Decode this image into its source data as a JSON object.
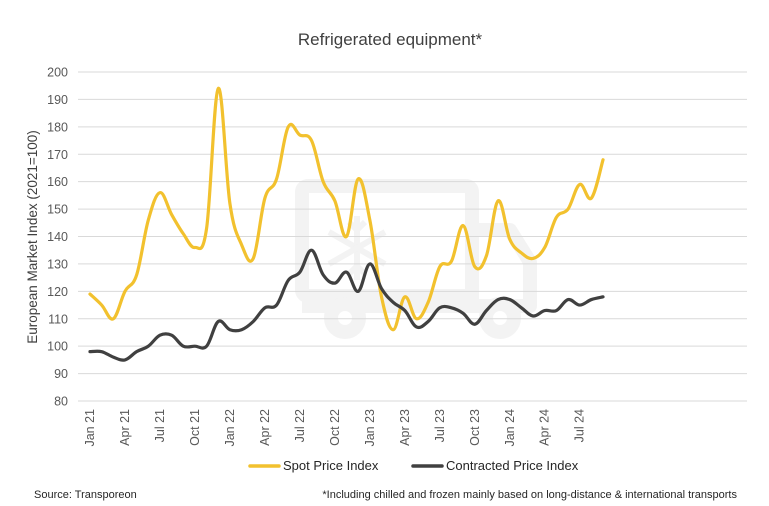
{
  "chart_data": {
    "type": "line",
    "title": "Refrigerated equipment*",
    "ylabel": "European Market Index (2021=100)",
    "xlabel": "",
    "ylim": [
      80,
      200
    ],
    "yticks": [
      80,
      90,
      100,
      110,
      120,
      130,
      140,
      150,
      160,
      170,
      180,
      190,
      200
    ],
    "x": [
      "Jan 21",
      "Feb 21",
      "Mar 21",
      "Apr 21",
      "May 21",
      "Jun 21",
      "Jul 21",
      "Aug 21",
      "Sep 21",
      "Oct 21",
      "Nov 21",
      "Dec 21",
      "Jan 22",
      "Feb 22",
      "Mar 22",
      "Apr 22",
      "May 22",
      "Jun 22",
      "Jul 22",
      "Aug 22",
      "Sep 22",
      "Oct 22",
      "Nov 22",
      "Dec 22",
      "Jan 23",
      "Feb 23",
      "Mar 23",
      "Apr 23",
      "May 23",
      "Jun 23",
      "Jul 23",
      "Aug 23",
      "Sep 23",
      "Oct 23",
      "Nov 23",
      "Dec 23",
      "Jan 24",
      "Feb 24",
      "Mar 24",
      "Apr 24",
      "May 24",
      "Jun 24",
      "Jul 24",
      "Aug 24",
      "Sep 24"
    ],
    "xtick_labels": [
      "Jan 21",
      "Apr 21",
      "Jul 21",
      "Oct 21",
      "Jan 22",
      "Apr 22",
      "Jul 22",
      "Oct 22",
      "Jan 23",
      "Apr 23",
      "Jul 23",
      "Oct 23",
      "Jan 24",
      "Apr 24",
      "Jul 24"
    ],
    "series": [
      {
        "name": "Spot Price Index",
        "color": "#f2c12e",
        "values": [
          119,
          115,
          110,
          120,
          126,
          146,
          156,
          148,
          141,
          136,
          143,
          194,
          152,
          137,
          132,
          154,
          161,
          180,
          177,
          175,
          160,
          153,
          140,
          161,
          146,
          118,
          106,
          118,
          110,
          116,
          129,
          131,
          144,
          129,
          133,
          153,
          139,
          134,
          132,
          136,
          147,
          150,
          159,
          154,
          168
        ]
      },
      {
        "name": "Contracted Price Index",
        "color": "#404040",
        "values": [
          98,
          98,
          96,
          95,
          98,
          100,
          104,
          104,
          100,
          100,
          100,
          109,
          106,
          106,
          109,
          114,
          115,
          124,
          127,
          135,
          126,
          123,
          127,
          120,
          130,
          121,
          116,
          113,
          107,
          109,
          114,
          114,
          112,
          108,
          113,
          117,
          117,
          114,
          111,
          113,
          113,
          117,
          115,
          117,
          118
        ]
      }
    ],
    "legend_position": "bottom",
    "grid": true
  },
  "footer": {
    "source": "Source: Transporeon",
    "note": "*Including chilled and frozen mainly based on long-distance & international transports"
  }
}
